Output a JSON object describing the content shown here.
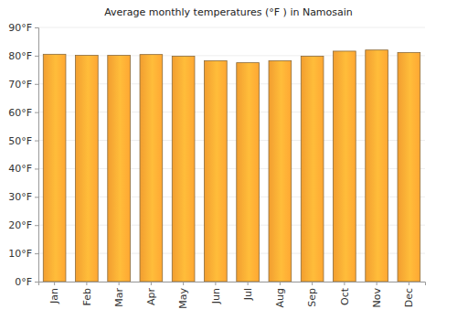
{
  "chart_data": {
    "type": "bar",
    "title": "Average monthly temperatures (°F ) in Namosain",
    "categories": [
      "Jan",
      "Feb",
      "Mar",
      "Apr",
      "May",
      "Jun",
      "Jul",
      "Aug",
      "Sep",
      "Oct",
      "Nov",
      "Dec"
    ],
    "values": [
      80.5,
      80.1,
      80.1,
      80.4,
      79.8,
      78.2,
      77.5,
      78.2,
      79.8,
      81.6,
      82.0,
      81.1
    ],
    "color": "#ffa733",
    "ylim": [
      0,
      90
    ],
    "yticks": [
      {
        "value": 0,
        "label": "0°F"
      },
      {
        "value": 10,
        "label": "10°F"
      },
      {
        "value": 20,
        "label": "20°F"
      },
      {
        "value": 30,
        "label": "30°F"
      },
      {
        "value": 40,
        "label": "40°F"
      },
      {
        "value": 50,
        "label": "50°F"
      },
      {
        "value": 60,
        "label": "60°F"
      },
      {
        "value": 70,
        "label": "70°F"
      },
      {
        "value": 80,
        "label": "80°F"
      },
      {
        "value": 90,
        "label": "90°F"
      }
    ],
    "grid": true
  }
}
